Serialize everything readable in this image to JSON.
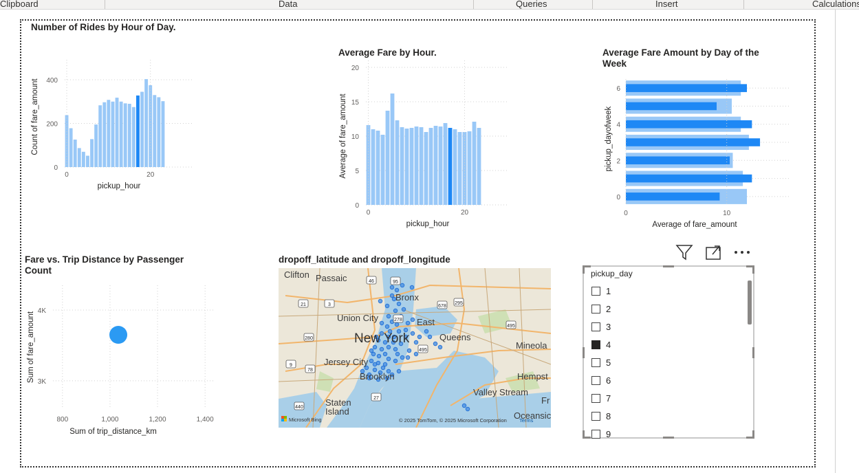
{
  "ribbon": {
    "tabs": [
      "Clipboard",
      "Data",
      "Queries",
      "Insert",
      "Calculations"
    ]
  },
  "colors": {
    "bar": "#99c8f7",
    "bar_highlight": "#1e88f5",
    "scatter": "#2b9af3",
    "map_dot": "#1a6ad4"
  },
  "charts": {
    "rides_by_hour": {
      "title": "Number of Rides by Hour of Day.",
      "xlabel": "pickup_hour",
      "ylabel": "Count of fare_amount"
    },
    "fare_by_hour": {
      "title": "Average Fare by Hour.",
      "xlabel": "pickup_hour",
      "ylabel": "Average of fare_amount"
    },
    "fare_by_dow": {
      "title": "Average Fare Amount by Day of the Week",
      "xlabel": "Average of fare_amount",
      "ylabel": "pickup_dayofweek"
    },
    "fare_vs_distance": {
      "title": "Fare vs. Trip Distance by Passenger Count",
      "xlabel": "Sum of trip_distance_km",
      "ylabel": "Sum of fare_amount"
    },
    "dropoff_map": {
      "title": "dropoff_latitude and dropoff_longitude",
      "labels": [
        "Clifton",
        "Passaic",
        "Bronx",
        "Union City",
        "East",
        "New York",
        "Queens",
        "Mineola",
        "Jersey City",
        "Brooklyn",
        "Hempst",
        "Valley Stream",
        "Staten",
        "Island",
        "Oceansic",
        "Fr"
      ],
      "route_shields": [
        "46",
        "95",
        "21",
        "3",
        "278",
        "678",
        "295",
        "495",
        "280",
        "495",
        "9",
        "78",
        "27",
        "440"
      ],
      "attribution": "© 2025 TomTom, © 2025 Microsoft Corporation",
      "terms": "Terms",
      "bing": "Microsoft Bing"
    }
  },
  "chart_data": [
    {
      "type": "bar",
      "title": "Number of Rides by Hour of Day.",
      "xlabel": "pickup_hour",
      "ylabel": "Count of fare_amount",
      "x": [
        0,
        1,
        2,
        3,
        4,
        5,
        6,
        7,
        8,
        9,
        10,
        11,
        12,
        13,
        14,
        15,
        16,
        17,
        18,
        19,
        20,
        21,
        22,
        23
      ],
      "values": [
        238,
        178,
        126,
        87,
        70,
        52,
        128,
        195,
        283,
        297,
        308,
        300,
        318,
        300,
        292,
        290,
        275,
        328,
        345,
        403,
        375,
        330,
        320,
        302
      ],
      "highlight_index": 17,
      "ylim": [
        0,
        460
      ],
      "yticks": [
        "0",
        "200",
        "400"
      ],
      "xticks": [
        "0",
        "20"
      ],
      "grid": true
    },
    {
      "type": "bar",
      "title": "Average Fare by Hour.",
      "xlabel": "pickup_hour",
      "ylabel": "Average of fare_amount",
      "x": [
        0,
        1,
        2,
        3,
        4,
        5,
        6,
        7,
        8,
        9,
        10,
        11,
        12,
        13,
        14,
        15,
        16,
        17,
        18,
        19,
        20,
        21,
        22,
        23
      ],
      "values": [
        11.6,
        11.0,
        10.8,
        10.2,
        13.7,
        16.2,
        12.3,
        11.3,
        11.1,
        11.2,
        11.4,
        11.3,
        10.6,
        11.2,
        11.5,
        11.4,
        11.9,
        11.2,
        11.0,
        10.6,
        10.6,
        10.7,
        12.1,
        11.2
      ],
      "highlight_index": 17,
      "ylim": [
        0,
        20
      ],
      "yticks": [
        "0",
        "5",
        "10",
        "15",
        "20"
      ],
      "xticks": [
        "0",
        "20"
      ],
      "grid": true
    },
    {
      "type": "bar",
      "orientation": "horizontal",
      "title": "Average Fare Amount by Day of the Week",
      "xlabel": "Average of fare_amount",
      "ylabel": "pickup_dayofweek",
      "categories": [
        "0",
        "1",
        "2",
        "3",
        "4",
        "5",
        "6"
      ],
      "series": [
        {
          "values": [
            12.0,
            11.6,
            10.6,
            12.2,
            11.4,
            10.5,
            11.4
          ]
        },
        {
          "values": [
            9.3,
            12.5,
            10.3,
            13.3,
            12.5,
            9.0,
            12.0
          ]
        }
      ],
      "xlim": [
        0,
        15
      ],
      "xticks": [
        "0",
        "10"
      ],
      "yticks": [
        "0",
        "2",
        "4",
        "6"
      ],
      "grid": true
    },
    {
      "type": "scatter",
      "title": "Fare vs. Trip Distance by Passenger Count",
      "xlabel": "Sum of trip_distance_km",
      "ylabel": "Sum of fare_amount",
      "points": [
        {
          "x": 1035,
          "y": 3650
        }
      ],
      "xlim": [
        760,
        1440
      ],
      "ylim": [
        2600,
        4350
      ],
      "xticks": [
        "800",
        "1,000",
        "1,200",
        "1,400"
      ],
      "yticks": [
        "3K",
        "4K"
      ],
      "grid": true
    }
  ],
  "slicer": {
    "header": "pickup_day",
    "items": [
      {
        "label": "1",
        "checked": false
      },
      {
        "label": "2",
        "checked": false
      },
      {
        "label": "3",
        "checked": false
      },
      {
        "label": "4",
        "checked": true
      },
      {
        "label": "5",
        "checked": false
      },
      {
        "label": "6",
        "checked": false
      },
      {
        "label": "7",
        "checked": false
      },
      {
        "label": "8",
        "checked": false
      },
      {
        "label": "9",
        "checked": false
      }
    ]
  },
  "visual_header": {
    "icons": [
      "filter-icon",
      "focus-mode-icon",
      "more-options-icon"
    ]
  }
}
